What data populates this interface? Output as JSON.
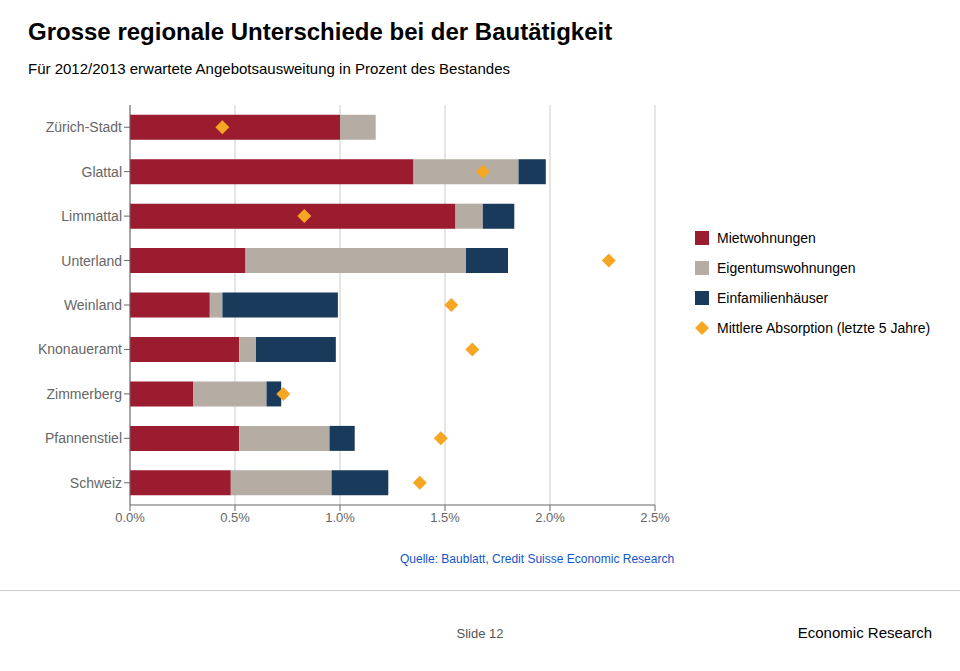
{
  "chart_data": {
    "type": "bar",
    "orientation": "horizontal",
    "stacked": true,
    "title": "Grosse regionale Unterschiede bei der Bautätigkeit",
    "subtitle": "Für 2012/2013 erwartete Angebotsausweitung in Prozent des Bestandes",
    "annotations": [
      "Quelle: Baublatt, Credit Suisse Economic Research",
      "Slide 12",
      "Economic Research"
    ],
    "categories": [
      "Zürich-Stadt",
      "Glattal",
      "Limmattal",
      "Unterland",
      "Weinland",
      "Knonaueramt",
      "Zimmerberg",
      "Pfannenstiel",
      "Schweiz"
    ],
    "series": [
      {
        "name": "Mietwohnungen",
        "color": "#9B1B2F",
        "values": [
          0.01,
          0.0135,
          0.0155,
          0.0055,
          0.0038,
          0.0052,
          0.003,
          0.0052,
          0.0048
        ]
      },
      {
        "name": "Eigentumswohnungen",
        "color": "#B5ACA3",
        "values": [
          0.0017,
          0.005,
          0.0013,
          0.0105,
          0.0006,
          0.0008,
          0.0035,
          0.0043,
          0.0048
        ]
      },
      {
        "name": "Einfamilienhäuser",
        "color": "#1A3A5C",
        "values": [
          0,
          0.0013,
          0.0015,
          0.002,
          0.0055,
          0.0038,
          0.0007,
          0.0012,
          0.0027
        ]
      },
      {
        "name": "Mittlere Absorption (letzte 5 Jahre)",
        "type": "scatter",
        "marker": "diamond",
        "color": "#F5A623",
        "values": [
          0.0044,
          0.0168,
          0.0083,
          0.0228,
          0.0153,
          0.0163,
          0.0073,
          0.0148,
          0.0138
        ]
      }
    ],
    "xlim": [
      0,
      0.025
    ],
    "xticks": [
      {
        "value": 0,
        "label": "0.0%"
      },
      {
        "value": 0.005,
        "label": "0.5%"
      },
      {
        "value": 0.01,
        "label": "1.0%"
      },
      {
        "value": 0.015,
        "label": "1.5%"
      },
      {
        "value": 0.02,
        "label": "2.0%"
      },
      {
        "value": 0.025,
        "label": "2.5%"
      }
    ],
    "grid": true,
    "legend": "right"
  }
}
